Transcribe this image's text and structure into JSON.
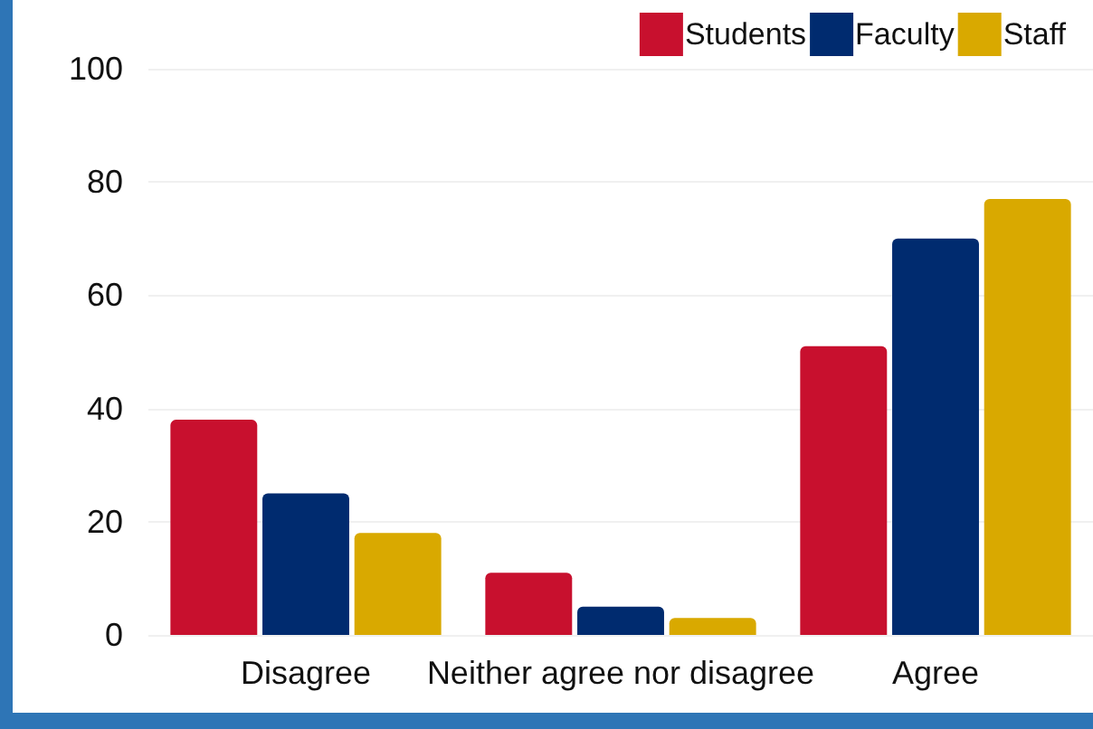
{
  "chart_data": {
    "type": "bar",
    "categories": [
      "Disagree",
      "Neither agree nor disagree",
      "Agree"
    ],
    "series": [
      {
        "name": "Students",
        "color": "#c8102e",
        "values": [
          38,
          11,
          51
        ]
      },
      {
        "name": "Faculty",
        "color": "#002b6f",
        "values": [
          25,
          5,
          70
        ]
      },
      {
        "name": "Staff",
        "color": "#d9a900",
        "values": [
          18,
          3,
          77
        ]
      }
    ],
    "ylim": [
      0,
      100
    ],
    "yticks": [
      0,
      20,
      40,
      60,
      80,
      100
    ],
    "grid": "y",
    "legend": "top right"
  }
}
